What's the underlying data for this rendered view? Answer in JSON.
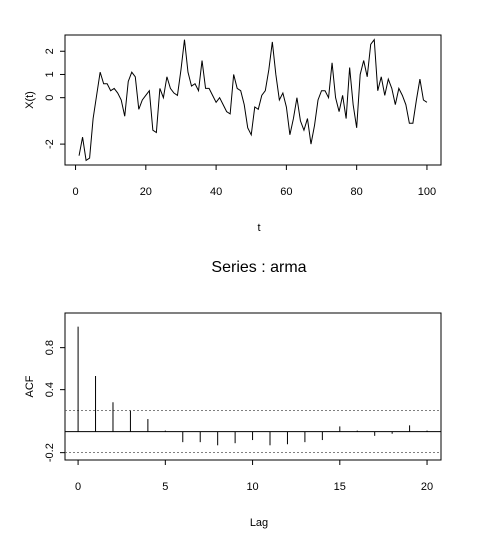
{
  "chart_data": [
    {
      "type": "line",
      "xlabel": "t",
      "ylabel": "X(t)",
      "x": [
        1,
        2,
        3,
        4,
        5,
        6,
        7,
        8,
        9,
        10,
        11,
        12,
        13,
        14,
        15,
        16,
        17,
        18,
        19,
        20,
        21,
        22,
        23,
        24,
        25,
        26,
        27,
        28,
        29,
        30,
        31,
        32,
        33,
        34,
        35,
        36,
        37,
        38,
        39,
        40,
        41,
        42,
        43,
        44,
        45,
        46,
        47,
        48,
        49,
        50,
        51,
        52,
        53,
        54,
        55,
        56,
        57,
        58,
        59,
        60,
        61,
        62,
        63,
        64,
        65,
        66,
        67,
        68,
        69,
        70,
        71,
        72,
        73,
        74,
        75,
        76,
        77,
        78,
        79,
        80,
        81,
        82,
        83,
        84,
        85,
        86,
        87,
        88,
        89,
        90,
        91,
        92,
        93,
        94,
        95,
        96,
        97,
        98,
        99,
        100
      ],
      "y": [
        -2.5,
        -1.7,
        -2.7,
        -2.6,
        -0.9,
        0.1,
        1.1,
        0.6,
        0.6,
        0.3,
        0.4,
        0.2,
        -0.1,
        -0.8,
        0.7,
        1.1,
        0.9,
        -0.5,
        -0.1,
        0.1,
        0.3,
        -1.4,
        -1.5,
        0.4,
        0,
        0.9,
        0.4,
        0.2,
        0.1,
        1.2,
        2.5,
        1.1,
        0.5,
        0.6,
        0.3,
        1.6,
        0.4,
        0.4,
        0.1,
        -0.2,
        0,
        -0.3,
        -0.6,
        -0.7,
        1,
        0.4,
        0.3,
        -0.3,
        -1.3,
        -1.6,
        -0.4,
        -0.5,
        0.1,
        0.3,
        1.2,
        2.4,
        1,
        -0.1,
        0.2,
        -0.4,
        -1.6,
        -0.9,
        0,
        -1,
        -1.4,
        -0.9,
        -2,
        -1.2,
        -0.1,
        0.3,
        0.3,
        0,
        1.5,
        0,
        -0.6,
        0.1,
        -0.9,
        1.3,
        -0.3,
        -1.3,
        1,
        1.6,
        0.9,
        2.3,
        2.5,
        0.3,
        0.9,
        0.1,
        0.8,
        0.4,
        -0.3,
        0.4,
        0.1,
        -0.3,
        -1.1,
        -1.1,
        -0.1,
        0.8,
        -0.1,
        -0.2
      ],
      "color": "#000000",
      "xlim": [
        -3,
        104
      ],
      "ylim": [
        -2.9,
        2.7
      ],
      "xticks": [
        0,
        20,
        40,
        60,
        80,
        100
      ],
      "yticks": [
        -2,
        0,
        1,
        2
      ]
    },
    {
      "type": "bar",
      "title": "Series : arma",
      "xlabel": "Lag",
      "ylabel": "ACF",
      "x": [
        0,
        1,
        2,
        3,
        4,
        5,
        6,
        7,
        8,
        9,
        10,
        11,
        12,
        13,
        14,
        15,
        16,
        17,
        18,
        19,
        20
      ],
      "values": [
        1.0,
        0.53,
        0.28,
        0.2,
        0.12,
        0.01,
        -0.1,
        -0.1,
        -0.13,
        -0.11,
        -0.08,
        -0.13,
        -0.12,
        -0.1,
        -0.08,
        0.05,
        0.01,
        -0.04,
        -0.02,
        0.06,
        0.01
      ],
      "ci": [
        -0.2,
        0.2
      ],
      "color": "#000000",
      "xlim": [
        -0.75,
        20.8
      ],
      "ylim": [
        -0.27,
        1.13
      ],
      "xticks": [
        0,
        5,
        10,
        15,
        20
      ],
      "yticks": [
        -0.2,
        0.4,
        0.8
      ]
    }
  ]
}
